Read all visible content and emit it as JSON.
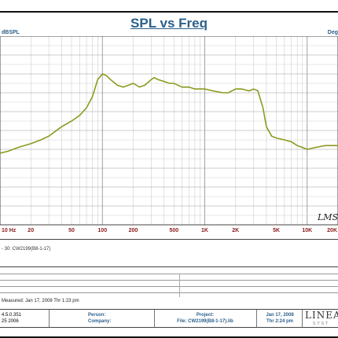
{
  "chart_data": {
    "type": "line",
    "title": "SPL vs Freq",
    "ylabel": "dBSPL",
    "right_label": "Deg",
    "x_scale": "log",
    "xlim": [
      10,
      20000
    ],
    "ylim": [
      0,
      100
    ],
    "grid": true,
    "x_ticks": [
      {
        "value": 10,
        "label": "10 Hz"
      },
      {
        "value": 20,
        "label": "20"
      },
      {
        "value": 50,
        "label": "50"
      },
      {
        "value": 100,
        "label": "100"
      },
      {
        "value": 200,
        "label": "200"
      },
      {
        "value": 500,
        "label": "500"
      },
      {
        "value": 1000,
        "label": "1K"
      },
      {
        "value": 2000,
        "label": "2K"
      },
      {
        "value": 5000,
        "label": "5K"
      },
      {
        "value": 10000,
        "label": "10K"
      },
      {
        "value": 20000,
        "label": "20K"
      }
    ],
    "series": [
      {
        "color": "#8c9a1e",
        "x": [
          10,
          12,
          15,
          20,
          25,
          30,
          40,
          50,
          60,
          70,
          80,
          90,
          100,
          110,
          120,
          140,
          160,
          180,
          200,
          230,
          260,
          300,
          320,
          350,
          400,
          450,
          500,
          600,
          700,
          800,
          1000,
          1200,
          1500,
          1700,
          2000,
          2300,
          2700,
          3000,
          3300,
          3700,
          4000,
          4500,
          5000,
          6000,
          7000,
          8000,
          9000,
          10000,
          12000,
          15000,
          20000
        ],
        "y": [
          38,
          39,
          41,
          43,
          45,
          47,
          52,
          55,
          58,
          62,
          68,
          77,
          80,
          79,
          77,
          74,
          73,
          74,
          75,
          73,
          74,
          77,
          78,
          77,
          76,
          75,
          75,
          73,
          73,
          72,
          72,
          71,
          70,
          70,
          72,
          72,
          71,
          72,
          71,
          62,
          52,
          47,
          46,
          45,
          44,
          42,
          41,
          40,
          41,
          42,
          42
        ]
      }
    ]
  },
  "lms_mark": "LMS",
  "legend": {
    "entry": "- 30:  CW2199(B8-1-17)"
  },
  "measured": "Measured: Jan 17, 2008  Thr  1:23 pm",
  "footer": {
    "version": "4.5.0.351",
    "version_date": "25 2006",
    "person_label": "Person:",
    "company_label": "Company:",
    "project_label": "Project:",
    "file_text": "File: CW2199(B8-1-17).lib",
    "date": "Jan 17, 2008",
    "time": "Thr  2:24 pm",
    "logo": "LINEA",
    "logo_sub": "SYST"
  }
}
